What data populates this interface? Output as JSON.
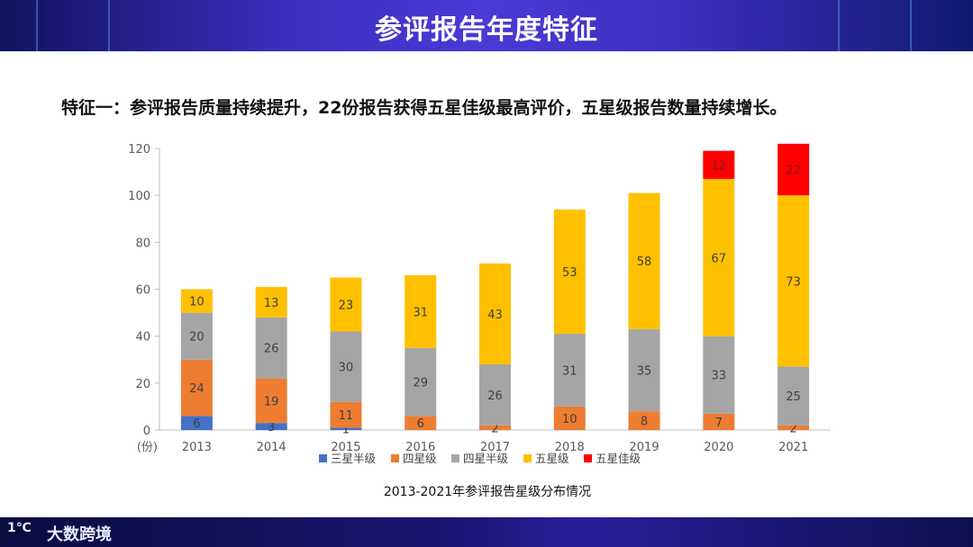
{
  "header": {
    "title": "参评报告年度特征"
  },
  "headline": "特征一：参评报告质量持续提升，22份报告获得五星佳级最高评价，五星级报告数量持续增长。",
  "footer": {
    "logo_mark": "1℃",
    "logo_text": "大数跨境"
  },
  "chart_data": {
    "type": "bar",
    "stacked": true,
    "title": "2013-2021年参评报告星级分布情况",
    "xlabel": "",
    "ylabel": "(份)",
    "ylim": [
      0,
      120
    ],
    "yticks": [
      0,
      20,
      40,
      60,
      80,
      100,
      120
    ],
    "categories": [
      "2013",
      "2014",
      "2015",
      "2016",
      "2017",
      "2018",
      "2019",
      "2020",
      "2021"
    ],
    "series": [
      {
        "name": "三星半级",
        "color": "#4472c4",
        "values": [
          6,
          3,
          1,
          0,
          0,
          0,
          0,
          0,
          0
        ]
      },
      {
        "name": "四星级",
        "color": "#ed7d31",
        "values": [
          24,
          19,
          11,
          6,
          2,
          10,
          8,
          7,
          2
        ]
      },
      {
        "name": "四星半级",
        "color": "#a5a5a5",
        "values": [
          20,
          26,
          30,
          29,
          26,
          31,
          35,
          33,
          25
        ]
      },
      {
        "name": "五星级",
        "color": "#ffc000",
        "values": [
          10,
          13,
          23,
          31,
          43,
          53,
          58,
          67,
          73
        ]
      },
      {
        "name": "五星佳级",
        "color": "#ff0000",
        "values": [
          0,
          0,
          0,
          0,
          0,
          0,
          0,
          12,
          22
        ]
      }
    ],
    "legend_position": "bottom"
  }
}
